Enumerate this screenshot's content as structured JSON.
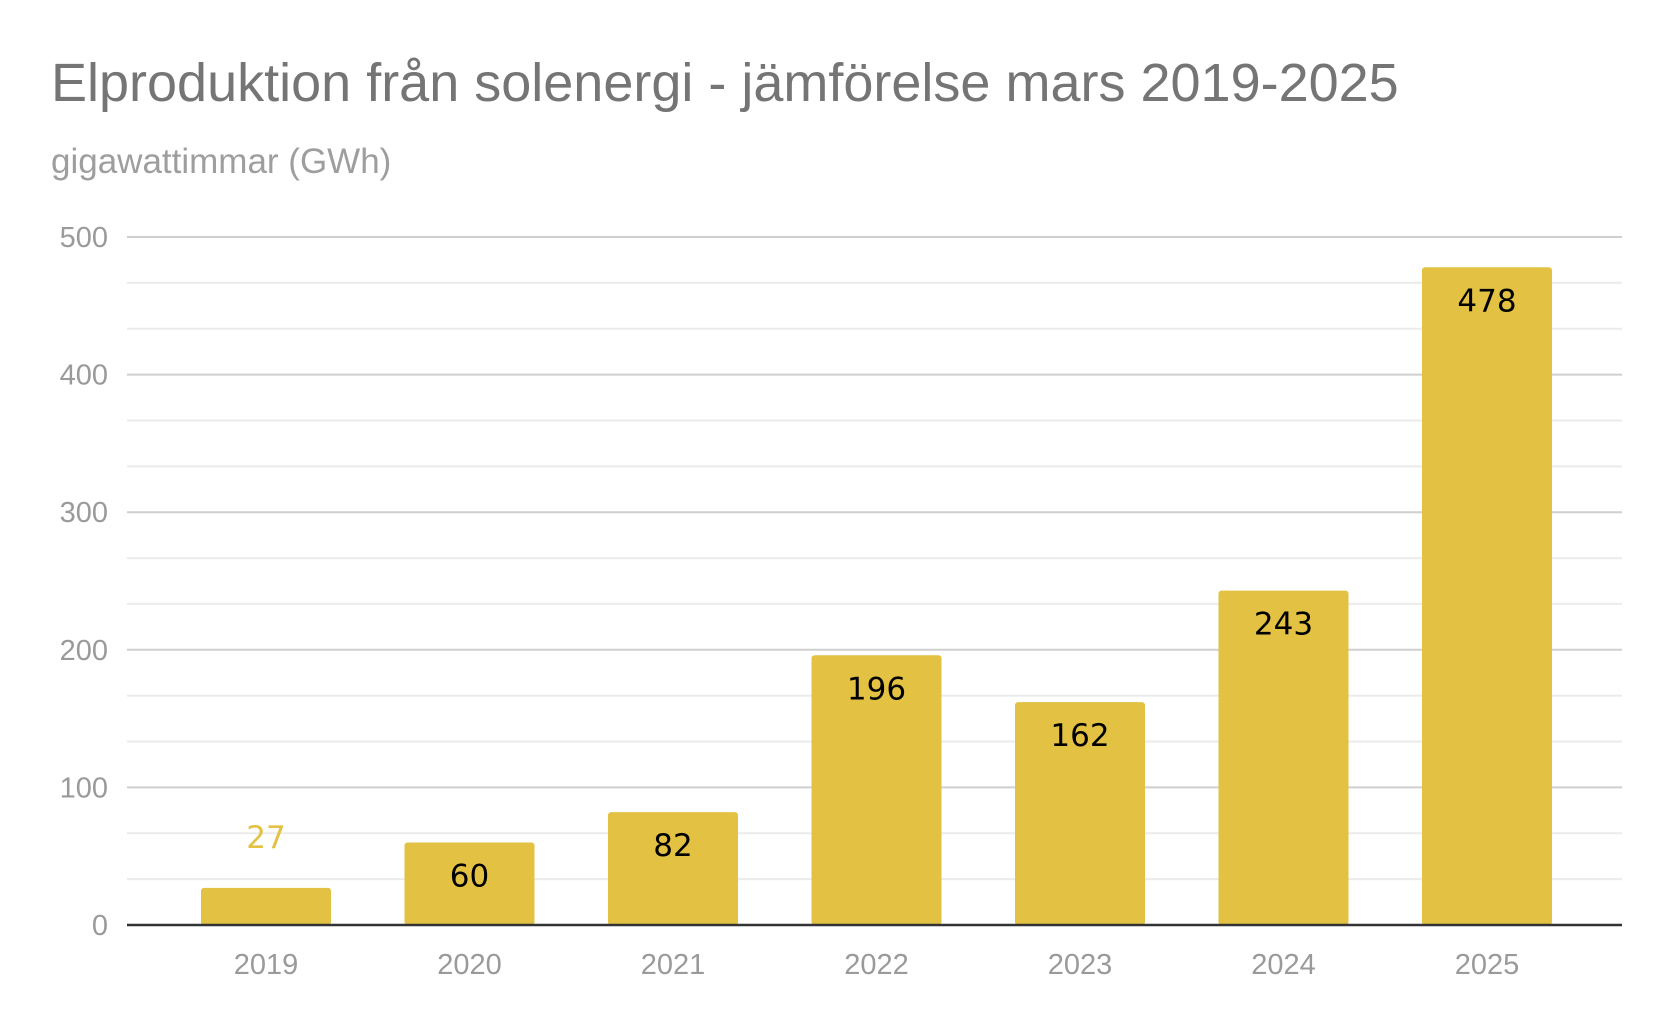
{
  "chart_data": {
    "type": "bar",
    "title": "Elproduktion från solenergi - jämförelse mars 2019-2025",
    "subtitle": "gigawattimmar (GWh)",
    "categories": [
      "2019",
      "2020",
      "2021",
      "2022",
      "2023",
      "2024",
      "2025"
    ],
    "values": [
      27,
      60,
      82,
      196,
      162,
      243,
      478
    ],
    "ylim": [
      0,
      500
    ],
    "yticks": [
      0,
      100,
      200,
      300,
      400,
      500
    ],
    "grid": true,
    "legend": "none",
    "bar_color": "#e3c142",
    "outside_label_color": "#e3c142",
    "inside_label_color": "#000000"
  }
}
